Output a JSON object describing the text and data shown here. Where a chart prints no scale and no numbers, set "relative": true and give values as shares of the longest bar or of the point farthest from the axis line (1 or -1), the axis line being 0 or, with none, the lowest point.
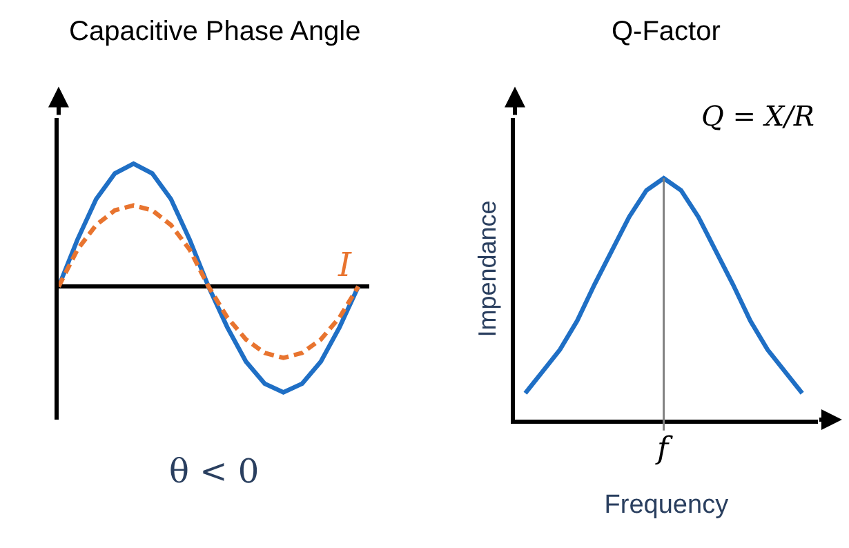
{
  "chart_data": [
    {
      "type": "line",
      "title": "Capacitive Phase Angle",
      "xlabel": "θ < 0",
      "relative": true,
      "categories": [
        null,
        null,
        null,
        null,
        null,
        null,
        null,
        null,
        null,
        null,
        null,
        null,
        null,
        null,
        null,
        null,
        null
      ],
      "series": [
        {
          "color": "#1f6fc5",
          "line_style": "solid",
          "values": [
            0,
            0.38,
            0.71,
            0.92,
            1,
            0.92,
            0.71,
            0.38,
            0,
            -0.33,
            -0.61,
            -0.79,
            -0.86,
            -0.79,
            -0.61,
            -0.33,
            0
          ]
        },
        {
          "name": "I",
          "color": "#e8742f",
          "line_style": "dashed",
          "values": [
            0,
            0.3,
            0.5,
            0.62,
            0.66,
            0.62,
            0.5,
            0.3,
            0,
            -0.25,
            -0.43,
            -0.54,
            -0.58,
            -0.54,
            -0.43,
            -0.25,
            0
          ]
        }
      ],
      "marker": "none"
    },
    {
      "type": "line",
      "title": "Q-Factor",
      "xlabel": "Frequency",
      "ylabel": "Impendance",
      "relative": true,
      "annotations": [
        "Q = X/R",
        "f"
      ],
      "categories": [
        null,
        null,
        null,
        null,
        null,
        null,
        null,
        null,
        null,
        null,
        null,
        null,
        null,
        null,
        null,
        null,
        null
      ],
      "series": [
        {
          "color": "#1f6fc5",
          "line_style": "solid",
          "values": [
            0.11,
            0.2,
            0.29,
            0.41,
            0.56,
            0.7,
            0.84,
            0.95,
            1,
            0.95,
            0.84,
            0.7,
            0.56,
            0.41,
            0.29,
            0.2,
            0.11
          ]
        }
      ],
      "marker": "none"
    }
  ]
}
